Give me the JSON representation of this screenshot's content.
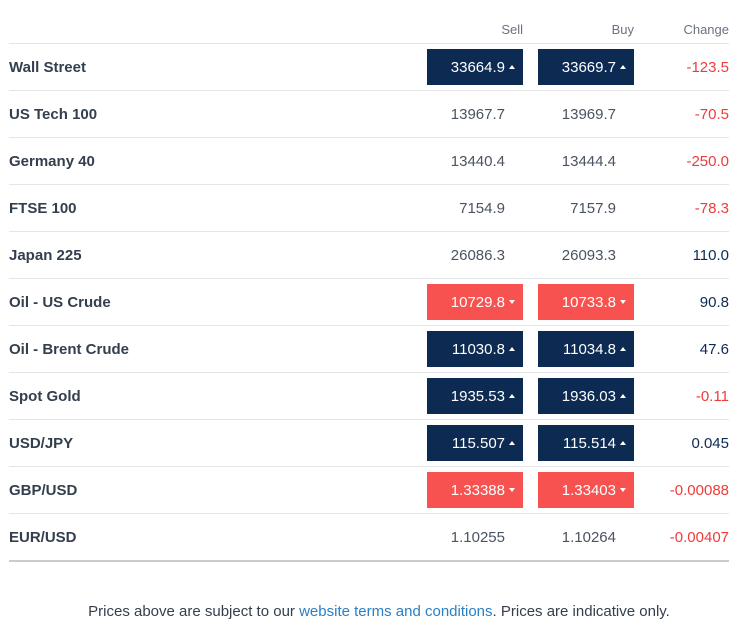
{
  "header": {
    "sell": "Sell",
    "buy": "Buy",
    "change": "Change"
  },
  "markets": [
    {
      "name": "Wall Street",
      "sell": "33664.9",
      "buy": "33669.7",
      "change": "-123.5",
      "dir": "up",
      "change_sign": "neg"
    },
    {
      "name": "US Tech 100",
      "sell": "13967.7",
      "buy": "13969.7",
      "change": "-70.5",
      "dir": "none",
      "change_sign": "neg"
    },
    {
      "name": "Germany 40",
      "sell": "13440.4",
      "buy": "13444.4",
      "change": "-250.0",
      "dir": "none",
      "change_sign": "neg"
    },
    {
      "name": "FTSE 100",
      "sell": "7154.9",
      "buy": "7157.9",
      "change": "-78.3",
      "dir": "none",
      "change_sign": "neg"
    },
    {
      "name": "Japan 225",
      "sell": "26086.3",
      "buy": "26093.3",
      "change": "110.0",
      "dir": "none",
      "change_sign": "pos"
    },
    {
      "name": "Oil - US Crude",
      "sell": "10729.8",
      "buy": "10733.8",
      "change": "90.8",
      "dir": "down",
      "change_sign": "pos"
    },
    {
      "name": "Oil - Brent Crude",
      "sell": "11030.8",
      "buy": "11034.8",
      "change": "47.6",
      "dir": "up",
      "change_sign": "pos"
    },
    {
      "name": "Spot Gold",
      "sell": "1935.53",
      "buy": "1936.03",
      "change": "-0.11",
      "dir": "up",
      "change_sign": "neg"
    },
    {
      "name": "USD/JPY",
      "sell": "115.507",
      "buy": "115.514",
      "change": "0.045",
      "dir": "up",
      "change_sign": "pos"
    },
    {
      "name": "GBP/USD",
      "sell": "1.33388",
      "buy": "1.33403",
      "change": "-0.00088",
      "dir": "down",
      "change_sign": "neg"
    },
    {
      "name": "EUR/USD",
      "sell": "1.10255",
      "buy": "1.10264",
      "change": "-0.00407",
      "dir": "none",
      "change_sign": "neg"
    }
  ],
  "colors": {
    "up_bg": "#0d2a52",
    "down_bg": "#f7524f",
    "negative_text": "#ee3b3b",
    "positive_text": "#0d2a52",
    "link": "#2a7fc5"
  },
  "disclaimer": {
    "prefix": "Prices above are subject to our ",
    "link_text": "website terms and conditions",
    "suffix": ". Prices are indicative only."
  }
}
